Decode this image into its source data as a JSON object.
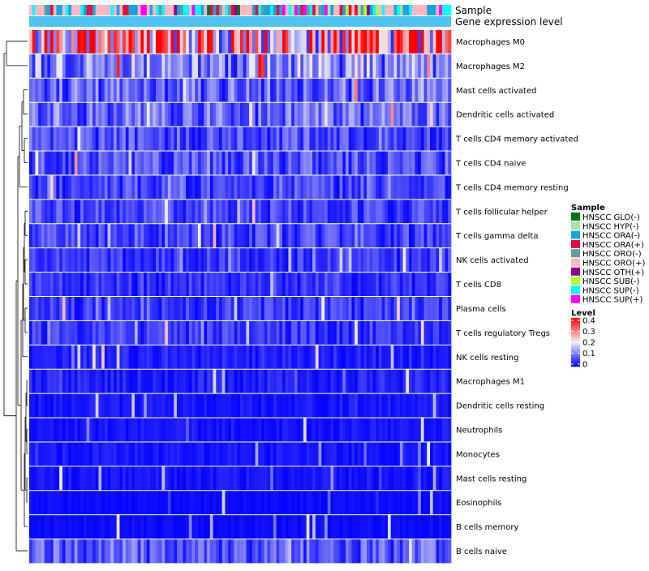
{
  "chart_data": {
    "type": "heatmap",
    "annotation_rows": {
      "sample_label": "Sample",
      "gene_label": "Gene expression level"
    },
    "rows": [
      {
        "name": "Macrophages M0",
        "mean_level": 0.3
      },
      {
        "name": "Macrophages M2",
        "mean_level": 0.13
      },
      {
        "name": "Mast cells activated",
        "mean_level": 0.09
      },
      {
        "name": "Dendritic cells activated",
        "mean_level": 0.09
      },
      {
        "name": "T cells CD4 memory activated",
        "mean_level": 0.07
      },
      {
        "name": "T cells CD4 naive",
        "mean_level": 0.07
      },
      {
        "name": "T cells CD4 memory resting",
        "mean_level": 0.06
      },
      {
        "name": "T cells follicular helper",
        "mean_level": 0.06
      },
      {
        "name": "T cells gamma delta",
        "mean_level": 0.06
      },
      {
        "name": "NK cells activated",
        "mean_level": 0.05
      },
      {
        "name": "T cells CD8",
        "mean_level": 0.05
      },
      {
        "name": "Plasma cells",
        "mean_level": 0.05
      },
      {
        "name": "T cells regulatory  Tregs",
        "mean_level": 0.05
      },
      {
        "name": "NK cells resting",
        "mean_level": 0.03
      },
      {
        "name": "Macrophages M1",
        "mean_level": 0.03
      },
      {
        "name": "Dendritic cells resting",
        "mean_level": 0.02
      },
      {
        "name": "Neutrophils",
        "mean_level": 0.02
      },
      {
        "name": "Monocytes",
        "mean_level": 0.02
      },
      {
        "name": "Mast cells resting",
        "mean_level": 0.02
      },
      {
        "name": "Eosinophils",
        "mean_level": 0.01
      },
      {
        "name": "B cells memory",
        "mean_level": 0.01
      },
      {
        "name": "B cells naive",
        "mean_level": 0.08
      }
    ],
    "n_samples": 140,
    "sample_legend": {
      "title": "Sample",
      "items": [
        {
          "label": "HNSCC GLO(-)",
          "color": "#00731c"
        },
        {
          "label": "HNSCC HYP(-)",
          "color": "#a6e0a6"
        },
        {
          "label": "HNSCC ORA(-)",
          "color": "#1aa3e0"
        },
        {
          "label": "HNSCC ORA(+)",
          "color": "#dc143c"
        },
        {
          "label": "HNSCC ORO(-)",
          "color": "#5f9ea0"
        },
        {
          "label": "HNSCC ORO(+)",
          "color": "#ffb6c1"
        },
        {
          "label": "HNSCC OTH(+)",
          "color": "#8b008b"
        },
        {
          "label": "HNSCC SUB(-)",
          "color": "#adff2f"
        },
        {
          "label": "HNSCC SUP(-)",
          "color": "#00ffff"
        },
        {
          "label": "HNSCC SUP(+)",
          "color": "#ff00ff"
        }
      ]
    },
    "level_legend": {
      "title": "Level",
      "ticks": [
        "0.4",
        "0.3",
        "0.2",
        "0.1",
        "0"
      ],
      "min": 0,
      "max": 0.4
    },
    "colors": {
      "low": "#0000ff",
      "mid": "#f0f0f0",
      "high": "#ff0000",
      "gene_band": "#4fc3ef"
    }
  }
}
